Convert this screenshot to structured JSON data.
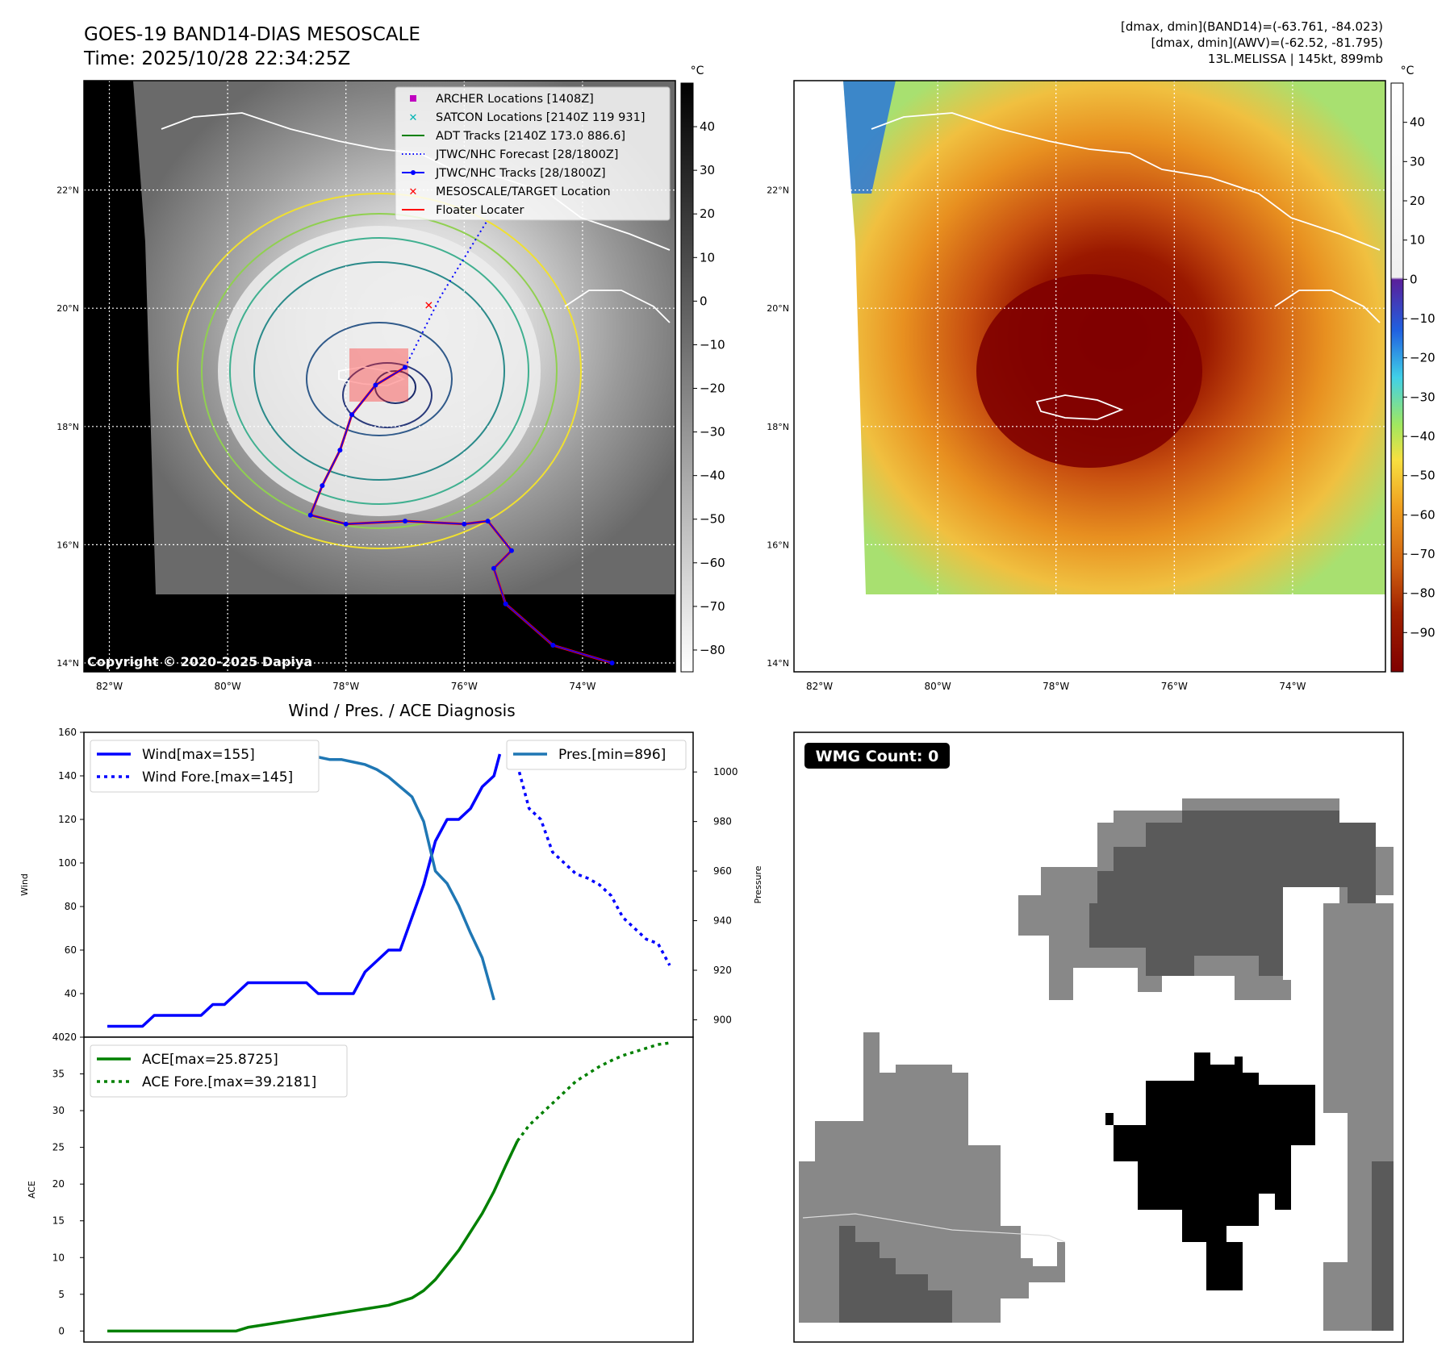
{
  "header": {
    "title_line1": "GOES-19 BAND14-DIAS MESOSCALE",
    "title_line2": "Time: 2025/10/28 22:34:25Z",
    "info_line1": "[dmax, dmin](BAND14)=(-63.761, -84.023)",
    "info_line2": "[dmax, dmin](AWV)=(-62.52, -81.795)",
    "info_line3": "13L.MELISSA | 145kt, 899mb"
  },
  "map_axes": {
    "lat_labels": [
      "22°N",
      "20°N",
      "18°N",
      "16°N",
      "14°N"
    ],
    "lat_values": [
      22,
      20,
      18,
      16,
      14
    ],
    "lon_labels": [
      "82°W",
      "80°W",
      "78°W",
      "76°W",
      "74°W"
    ],
    "lon_values": [
      -82,
      -80,
      -78,
      -76,
      -74
    ],
    "lon_range": [
      -82.43,
      -72.43
    ],
    "lat_range": [
      13.85,
      23.85
    ]
  },
  "colorbar_ir": {
    "unit": "°C",
    "ticks": [
      "40",
      "30",
      "20",
      "10",
      "0",
      "−10",
      "−20",
      "−30",
      "−40",
      "−50",
      "−60",
      "−70",
      "−80"
    ],
    "values": [
      40,
      30,
      20,
      10,
      0,
      -10,
      -20,
      -30,
      -40,
      -50,
      -60,
      -70,
      -80
    ],
    "range": [
      -85,
      50
    ]
  },
  "colorbar_awv": {
    "unit": "°C",
    "ticks": [
      "40",
      "30",
      "20",
      "10",
      "0",
      "−10",
      "−20",
      "−30",
      "−40",
      "−50",
      "−60",
      "−70",
      "−80",
      "−90"
    ],
    "values": [
      40,
      30,
      20,
      10,
      0,
      -10,
      -20,
      -30,
      -40,
      -50,
      -60,
      -70,
      -80,
      -90
    ],
    "range": [
      -100,
      50
    ]
  },
  "legend_map": [
    {
      "label": "ARCHER Locations [1408Z]",
      "symbol": "square",
      "color": "#c000c0"
    },
    {
      "label": "SATCON Locations [2140Z 119 931]",
      "symbol": "x",
      "color": "#00b4b4"
    },
    {
      "label": "ADT Tracks [2140Z 173.0 886.6]",
      "symbol": "line",
      "color": "#008000"
    },
    {
      "label": "JTWC/NHC Forecast [28/1800Z]",
      "symbol": "dotted",
      "color": "#0000ff"
    },
    {
      "label": "JTWC/NHC Tracks [28/1800Z]",
      "symbol": "line-dot",
      "color": "#0000ff"
    },
    {
      "label": "MESOSCALE/TARGET Location",
      "symbol": "x",
      "color": "#ff0000"
    },
    {
      "label": "Floater Locater",
      "symbol": "line",
      "color": "#ff0000"
    }
  ],
  "copyright": "Copyright © 2020-2025 Dapiya",
  "wmg": {
    "label": "WMG Count: 0"
  },
  "colors": {
    "wind": "#0000ff",
    "pressure": "#1f77b4",
    "ace": "#008000",
    "target": "#ff0000"
  },
  "track_points": [
    {
      "lon": -73.5,
      "lat": 14.0
    },
    {
      "lon": -74.5,
      "lat": 14.3
    },
    {
      "lon": -75.3,
      "lat": 15.0
    },
    {
      "lon": -75.5,
      "lat": 15.6
    },
    {
      "lon": -75.2,
      "lat": 15.9
    },
    {
      "lon": -75.6,
      "lat": 16.4
    },
    {
      "lon": -76.0,
      "lat": 16.35
    },
    {
      "lon": -77.0,
      "lat": 16.4
    },
    {
      "lon": -78.0,
      "lat": 16.35
    },
    {
      "lon": -78.6,
      "lat": 16.5
    },
    {
      "lon": -78.4,
      "lat": 17.0
    },
    {
      "lon": -78.1,
      "lat": 17.6
    },
    {
      "lon": -77.9,
      "lat": 18.2
    },
    {
      "lon": -77.5,
      "lat": 18.7
    },
    {
      "lon": -77.0,
      "lat": 19.0
    }
  ],
  "forecast_points": [
    {
      "lon": -77.0,
      "lat": 19.0
    },
    {
      "lon": -76.4,
      "lat": 20.2
    },
    {
      "lon": -75.6,
      "lat": 21.5
    }
  ],
  "target_location": {
    "lon": -76.6,
    "lat": 20.05
  },
  "chart_data": [
    {
      "type": "line",
      "title": "Wind / Pres. / ACE Diagnosis",
      "ylabel": "Wind",
      "ylabel_right": "Pressure",
      "ylim": [
        20,
        160
      ],
      "ylim_right": [
        893,
        1016
      ],
      "yticks": [
        20,
        40,
        60,
        80,
        100,
        120,
        140,
        160
      ],
      "yticks_right": [
        900,
        920,
        940,
        960,
        980,
        1000
      ],
      "series": [
        {
          "name": "Wind[max=155]",
          "axis": "left",
          "style": "solid",
          "x": [
            0,
            2,
            3,
            4,
            5,
            6,
            7,
            8,
            9,
            10,
            11,
            12,
            13,
            14,
            15,
            16,
            17,
            18,
            19,
            20,
            21,
            22,
            23,
            24,
            25,
            26,
            27,
            28,
            29,
            30,
            31,
            32,
            33,
            33.5
          ],
          "values": [
            25,
            25,
            25,
            30,
            30,
            30,
            30,
            30,
            35,
            35,
            40,
            45,
            45,
            45,
            45,
            45,
            45,
            40,
            40,
            40,
            40,
            50,
            55,
            60,
            60,
            75,
            90,
            110,
            120,
            120,
            125,
            135,
            140,
            150
          ]
        },
        {
          "name": "Wind Fore.[max=145]",
          "axis": "left",
          "style": "dotted",
          "x": [
            35,
            36,
            37,
            38,
            39,
            40,
            41,
            42,
            43,
            44,
            45,
            46,
            47,
            48
          ],
          "values": [
            145,
            125,
            120,
            105,
            100,
            95,
            93,
            90,
            85,
            75,
            70,
            65,
            63,
            53
          ]
        },
        {
          "name": "Pres.[min=896]",
          "axis": "right",
          "style": "solid",
          "x": [
            0,
            2,
            3,
            4,
            5,
            6,
            7,
            8,
            9,
            10,
            11,
            12,
            13,
            14,
            15,
            16,
            17,
            18,
            19,
            20,
            21,
            22,
            23,
            24,
            25,
            26,
            27,
            28,
            29,
            30,
            31,
            32,
            33
          ],
          "values": [
            1011,
            1011,
            1011,
            1010,
            1010,
            1010,
            1009,
            1009,
            1008,
            1008,
            1007,
            1007,
            1007,
            1007,
            1006,
            1006,
            1006,
            1006,
            1005,
            1005,
            1004,
            1003,
            1001,
            998,
            994,
            990,
            980,
            960,
            955,
            946,
            935,
            925,
            908
          ]
        }
      ]
    },
    {
      "type": "line",
      "ylabel": "ACE",
      "ylim": [
        -1.5,
        40
      ],
      "yticks": [
        0,
        5,
        10,
        15,
        20,
        25,
        30,
        35,
        40
      ],
      "series": [
        {
          "name": "ACE[max=25.8725]",
          "style": "solid",
          "x": [
            0,
            5,
            10,
            11,
            12,
            14,
            16,
            18,
            20,
            22,
            24,
            25,
            26,
            27,
            28,
            29,
            30,
            31,
            32,
            33,
            34,
            35
          ],
          "values": [
            0,
            0,
            0,
            0,
            0.5,
            1,
            1.5,
            2,
            2.5,
            3,
            3.5,
            4,
            4.5,
            5.5,
            7,
            9,
            11,
            13.5,
            16,
            19,
            22.5,
            25.87
          ]
        },
        {
          "name": "ACE Fore.[max=39.2181]",
          "style": "dotted",
          "x": [
            35,
            36,
            37,
            38,
            39,
            40,
            41,
            42,
            43,
            44,
            45,
            46,
            47,
            48
          ],
          "values": [
            25.87,
            28,
            29.5,
            31,
            32.5,
            34,
            35,
            36,
            36.8,
            37.5,
            38,
            38.5,
            39,
            39.22
          ]
        }
      ]
    }
  ]
}
